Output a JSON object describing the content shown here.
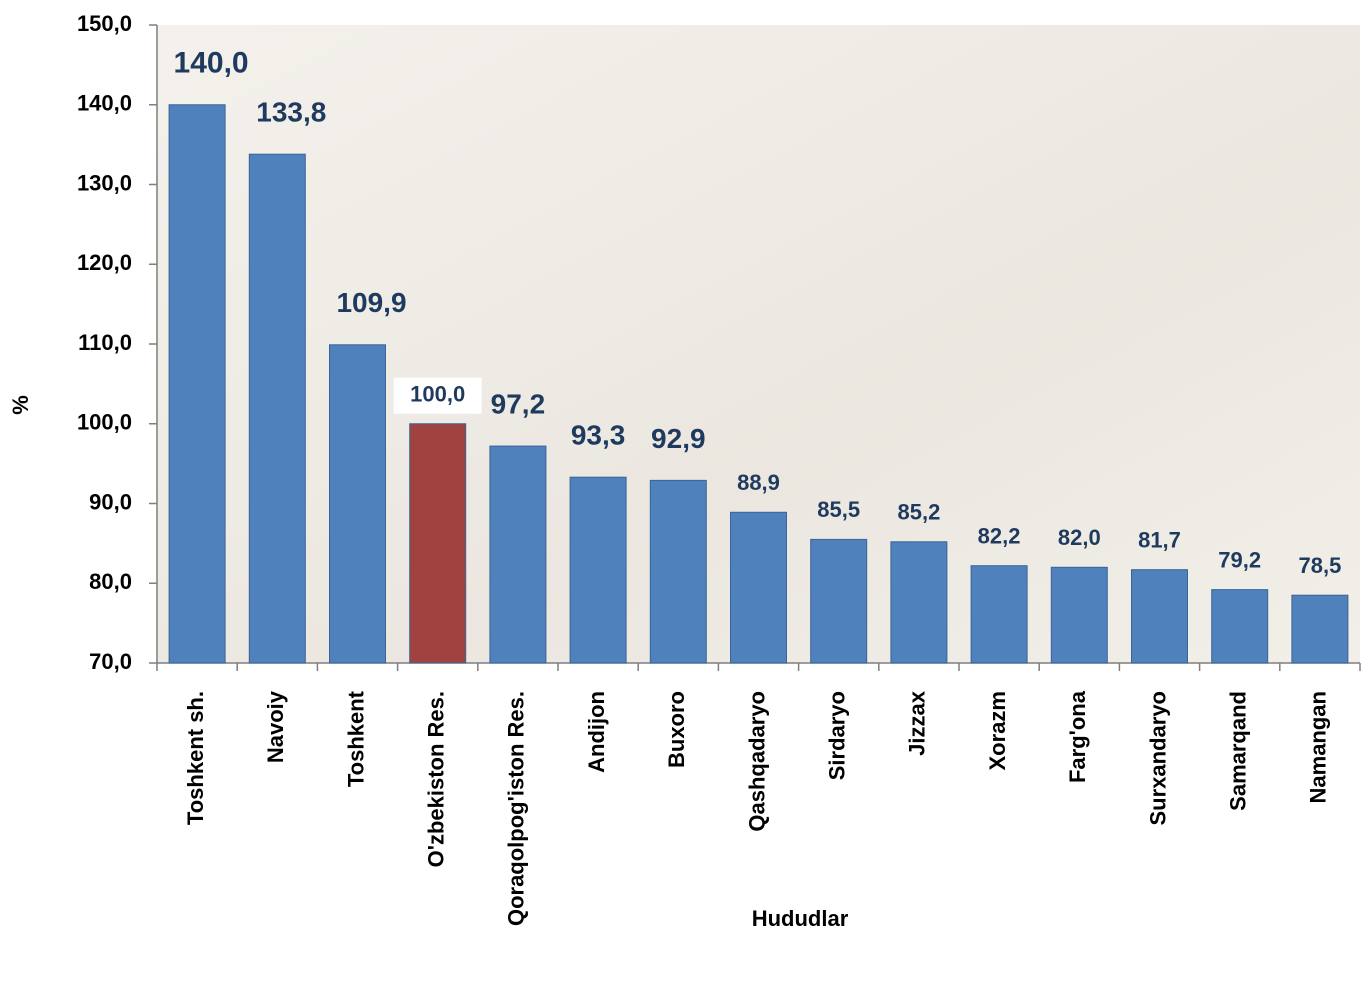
{
  "chart_data": {
    "type": "bar",
    "x_label": "Hududlar",
    "y_label": "%",
    "categories": [
      "Toshkent sh.",
      "Navoiy",
      "Toshkent",
      "O'zbekiston Res.",
      "Qoraqolpog'iston Res.",
      "Andijon",
      "Buxoro",
      "Qashqadaryo",
      "Sirdaryo",
      "Jizzax",
      "Xorazm",
      "Farg'ona",
      "Surxandaryo",
      "Samarqand",
      "Namangan"
    ],
    "values": [
      140.0,
      133.8,
      109.9,
      100.0,
      97.2,
      93.3,
      92.9,
      88.9,
      85.5,
      85.2,
      82.2,
      82.0,
      81.7,
      79.2,
      78.5
    ],
    "value_labels": [
      "140,0",
      "133,8",
      "109,9",
      "100,0",
      "97,2",
      "93,3",
      "92,9",
      "88,9",
      "85,5",
      "85,2",
      "82,2",
      "82,0",
      "81,7",
      "79,2",
      "78,5"
    ],
    "colors": [
      "#4f81bd",
      "#4f81bd",
      "#4f81bd",
      "#a04340",
      "#4f81bd",
      "#4f81bd",
      "#4f81bd",
      "#4f81bd",
      "#4f81bd",
      "#4f81bd",
      "#4f81bd",
      "#4f81bd",
      "#4f81bd",
      "#4f81bd",
      "#4f81bd"
    ],
    "ylim": [
      70,
      150
    ],
    "yticks": [
      {
        "value": 70,
        "label": "70,0"
      },
      {
        "value": 80,
        "label": "80,0"
      },
      {
        "value": 90,
        "label": "90,0"
      },
      {
        "value": 100,
        "label": "100,0"
      },
      {
        "value": 110,
        "label": "110,0"
      },
      {
        "value": 120,
        "label": "120,0"
      },
      {
        "value": 130,
        "label": "130,0"
      },
      {
        "value": 140,
        "label": "140,0"
      },
      {
        "value": 150,
        "label": "150,0"
      }
    ]
  }
}
